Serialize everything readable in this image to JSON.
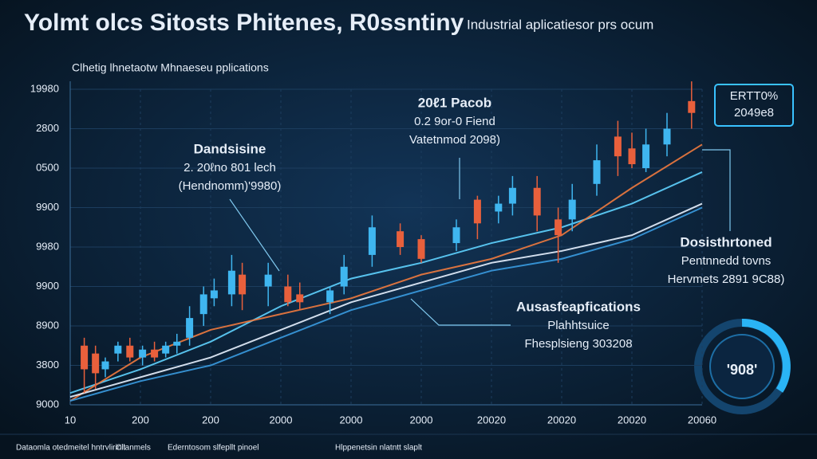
{
  "chart_data": {
    "type": "candlestick",
    "title": "Yolmt olcs Sitosts Phitenes, R0ssntiny",
    "subtitle": "Industrial aplicatiesor prs ocum",
    "panel_label": "Clhetig lhnetaotw Mhnaeseu pplications",
    "xlim": [
      0,
      9
    ],
    "xticks": [
      {
        "value": 0,
        "label": "10"
      },
      {
        "value": 1,
        "label": "200"
      },
      {
        "value": 2,
        "label": "200"
      },
      {
        "value": 3,
        "label": "2000"
      },
      {
        "value": 4,
        "label": "2000"
      },
      {
        "value": 5,
        "label": "2000"
      },
      {
        "value": 6,
        "label": "20020"
      },
      {
        "value": 7,
        "label": "20020"
      },
      {
        "value": 8,
        "label": "20020"
      },
      {
        "value": 9,
        "label": "20060"
      }
    ],
    "ylim": [
      0,
      8
    ],
    "yticks": [
      {
        "value": 0,
        "label": "9000"
      },
      {
        "value": 1,
        "label": "3800"
      },
      {
        "value": 2,
        "label": "8900"
      },
      {
        "value": 3,
        "label": "9900"
      },
      {
        "value": 4,
        "label": "9980"
      },
      {
        "value": 5,
        "label": "9900"
      },
      {
        "value": 6,
        "label": "0500"
      },
      {
        "value": 7,
        "label": "2800"
      },
      {
        "value": 8,
        "label": "19980"
      }
    ],
    "grid": true,
    "up_color": "#3fb6f0",
    "down_color": "#e8603c",
    "candles": {
      "x": [
        0.2,
        0.36,
        0.5,
        0.68,
        0.85,
        1.03,
        1.2,
        1.36,
        1.52,
        1.7,
        1.9,
        2.05,
        2.3,
        2.45,
        2.82,
        3.1,
        3.27,
        3.7,
        3.9,
        4.3,
        4.7,
        5.0,
        5.5,
        5.8,
        6.1,
        6.3,
        6.65,
        6.95,
        7.15,
        7.5,
        7.8,
        8.0,
        8.2,
        8.5,
        8.85
      ],
      "open": [
        1.5,
        1.3,
        0.9,
        1.3,
        1.5,
        1.2,
        1.4,
        1.3,
        1.5,
        1.7,
        2.3,
        2.7,
        2.8,
        3.3,
        3.0,
        3.0,
        2.8,
        2.6,
        3.0,
        3.8,
        4.4,
        4.2,
        4.1,
        5.2,
        4.9,
        5.1,
        5.5,
        4.7,
        4.7,
        5.6,
        6.8,
        6.5,
        6.0,
        6.6,
        7.7
      ],
      "high": [
        1.7,
        1.5,
        1.2,
        1.6,
        1.7,
        1.5,
        1.6,
        1.6,
        1.8,
        2.5,
        3.0,
        3.2,
        3.8,
        3.6,
        3.6,
        3.3,
        3.1,
        3.0,
        3.8,
        4.8,
        4.6,
        4.3,
        4.7,
        5.3,
        5.3,
        5.8,
        5.8,
        5.0,
        5.6,
        6.6,
        7.2,
        6.9,
        7.0,
        7.4,
        8.2
      ],
      "low": [
        0.3,
        0.4,
        0.7,
        1.1,
        1.1,
        1.0,
        1.1,
        1.2,
        1.3,
        1.5,
        2.0,
        2.5,
        2.5,
        2.4,
        2.5,
        2.5,
        2.4,
        2.3,
        2.8,
        3.5,
        3.8,
        3.6,
        3.9,
        4.2,
        4.6,
        4.8,
        4.4,
        3.6,
        4.4,
        5.3,
        5.8,
        6.0,
        5.9,
        6.3,
        7.0
      ],
      "close": [
        0.9,
        0.8,
        1.1,
        1.5,
        1.2,
        1.4,
        1.2,
        1.5,
        1.6,
        2.2,
        2.8,
        2.9,
        3.4,
        2.8,
        3.3,
        2.6,
        2.6,
        2.9,
        3.5,
        4.5,
        4.0,
        3.7,
        4.5,
        4.6,
        5.1,
        5.5,
        4.8,
        4.3,
        5.2,
        6.2,
        6.3,
        6.1,
        6.6,
        7.0,
        7.4
      ]
    },
    "series": [
      {
        "color": "#5fd3ff",
        "x": [
          0,
          1,
          2,
          3,
          4,
          5,
          6,
          7,
          8,
          9
        ],
        "values": [
          0.3,
          0.9,
          1.6,
          2.5,
          3.2,
          3.6,
          4.1,
          4.5,
          5.1,
          5.9
        ]
      },
      {
        "color": "#f07a3e",
        "x": [
          0,
          1,
          2,
          3,
          4,
          5,
          6,
          7,
          8,
          9
        ],
        "values": [
          0.1,
          1.2,
          1.9,
          2.3,
          2.7,
          3.3,
          3.7,
          4.3,
          5.5,
          6.6
        ]
      },
      {
        "color": "#e8f2ff",
        "x": [
          0,
          1,
          2,
          3,
          4,
          5,
          6,
          7,
          8,
          9
        ],
        "values": [
          0.2,
          0.7,
          1.2,
          1.9,
          2.6,
          3.1,
          3.6,
          3.9,
          4.3,
          5.1
        ]
      },
      {
        "color": "#3a9be0",
        "x": [
          0,
          1,
          2,
          3,
          4,
          5,
          6,
          7,
          8,
          9
        ],
        "values": [
          0.1,
          0.6,
          1.0,
          1.7,
          2.4,
          2.9,
          3.4,
          3.7,
          4.2,
          5.0
        ]
      }
    ],
    "annotations": [
      {
        "lines": [
          "Dandsisine",
          "2. 20ℓno 801 lech",
          "(Hendnomm)'9980)"
        ]
      },
      {
        "lines": [
          "20ℓ1 Pacob",
          "0.2 9or-0 Fiend",
          "Vatetnmod 2098)"
        ]
      },
      {
        "lines": [
          "Dosisthrtoned",
          "Pentnnedd tovns",
          "Hervmets 2891 9C88)"
        ]
      },
      {
        "lines": [
          "Ausasfeapfications",
          "Plahhtsuice",
          "Fhesplsieng 303208"
        ]
      }
    ],
    "badge": [
      "ERTT0%",
      "2049e8"
    ],
    "gauge_label": "'908'",
    "footer": [
      "Dataomla otedmeitel hntrvlirinlt",
      "Cilanmels",
      "Ederntosom slfepllt pinoel",
      "Hlppenetsin nlatntt slaplt"
    ]
  }
}
